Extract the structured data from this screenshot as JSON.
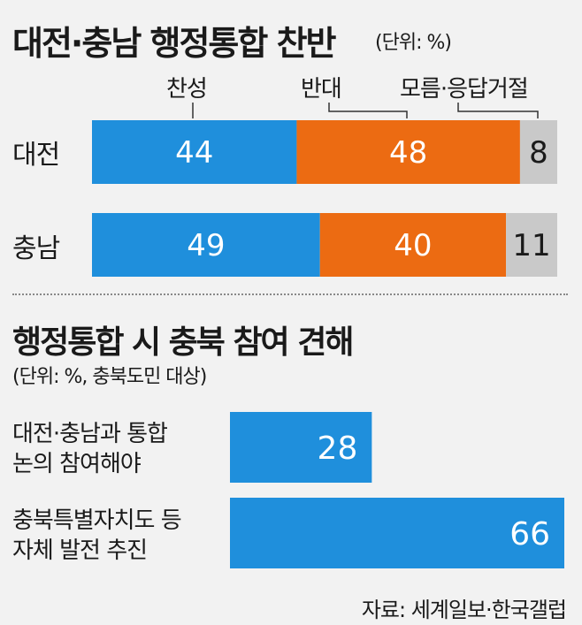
{
  "chart_data": [
    {
      "type": "bar",
      "stacked": true,
      "orientation": "horizontal",
      "title": "대전·충남 행정통합 찬반",
      "unit": "(단위: %)",
      "categories": [
        "대전",
        "충남"
      ],
      "series": [
        {
          "name": "찬성",
          "values": [
            44,
            49
          ],
          "color": "#1f8fdc"
        },
        {
          "name": "반대",
          "values": [
            48,
            40
          ],
          "color": "#ec6b12"
        },
        {
          "name": "모름·응답거절",
          "values": [
            8,
            11
          ],
          "color": "#c9c9c9"
        }
      ]
    },
    {
      "type": "bar",
      "orientation": "horizontal",
      "title": "행정통합 시 충북 참여 견해",
      "unit": "(단위: %, 충북도민 대상)",
      "categories": [
        [
          "대전·충남과 통합",
          "논의 참여해야"
        ],
        [
          "충북특별자치도 등",
          "자체 발전 추진"
        ]
      ],
      "values": [
        28,
        66
      ],
      "color": "#1f8fdc"
    }
  ],
  "source": "자료: 세계일보·한국갤럽"
}
